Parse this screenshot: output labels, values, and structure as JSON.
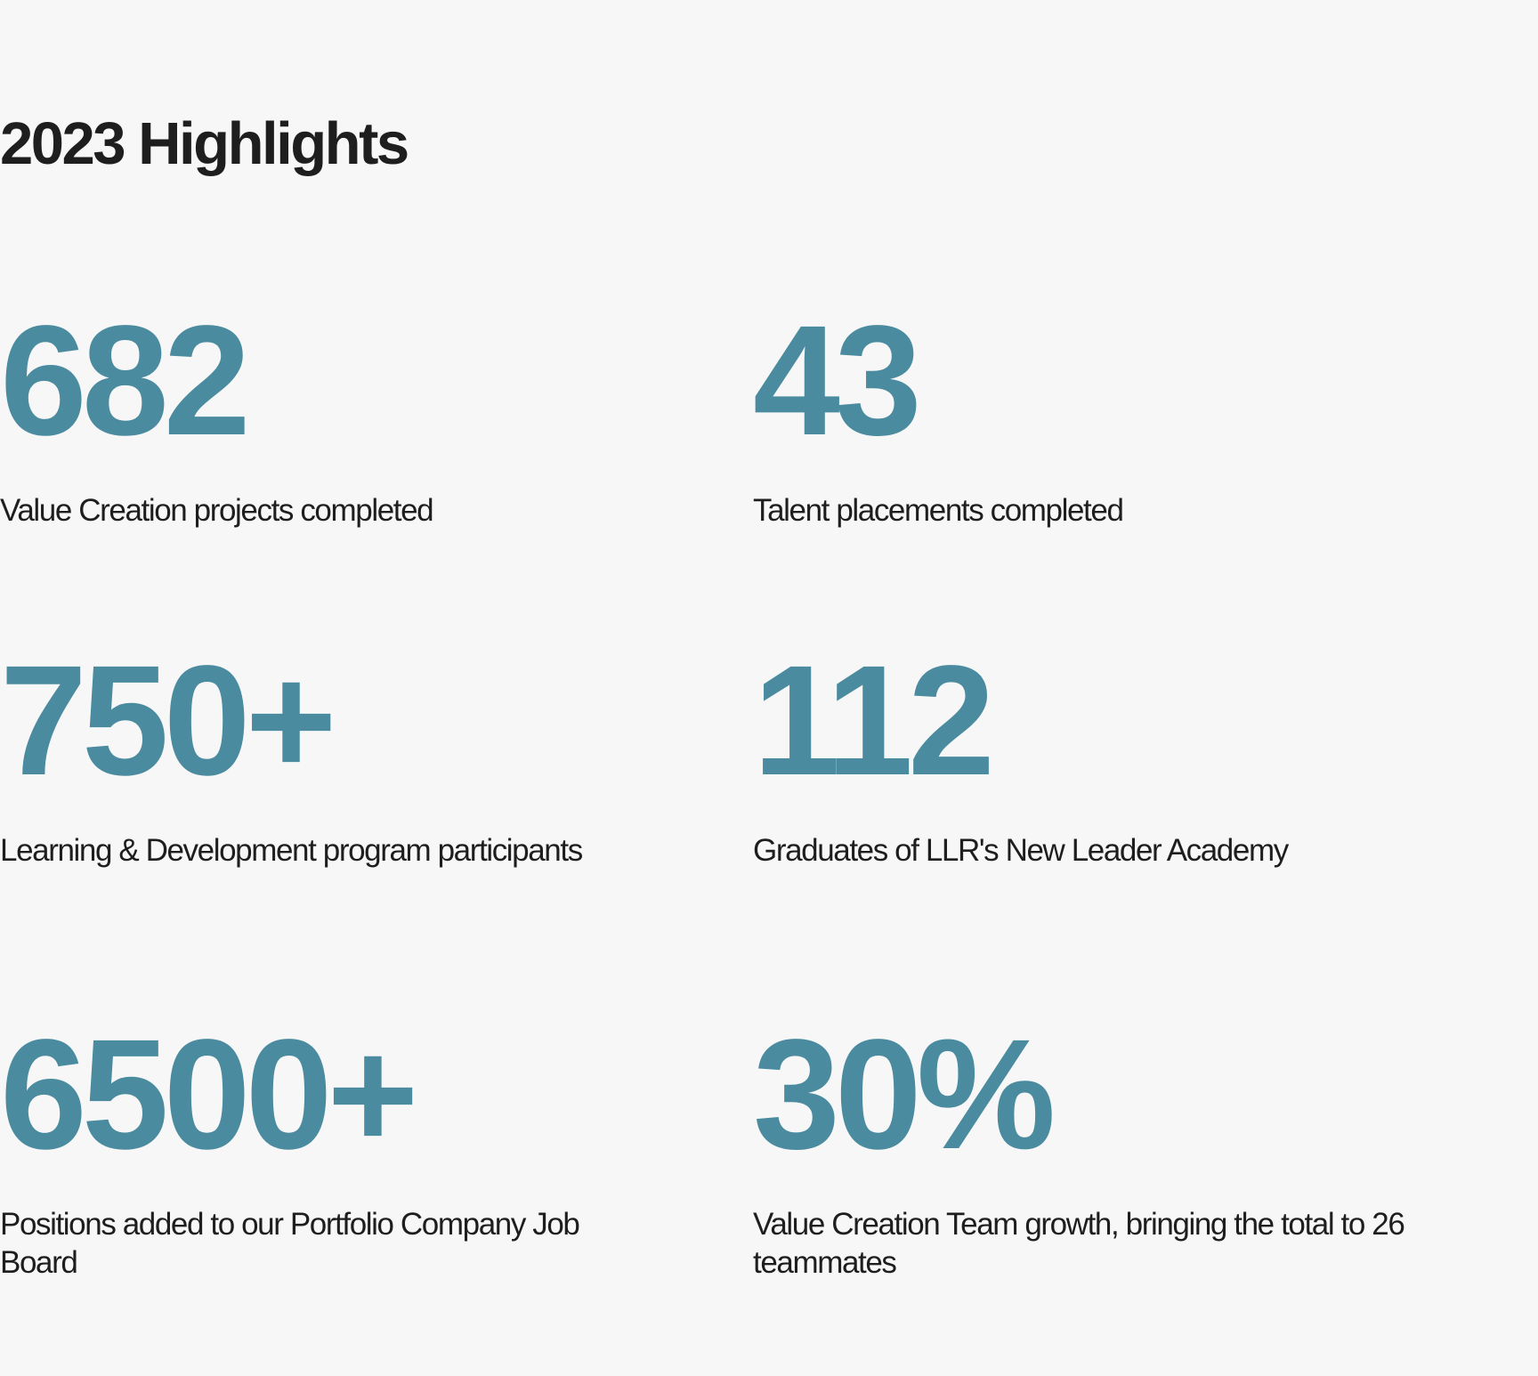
{
  "page": {
    "title": "2023 Highlights",
    "accent_color": "#4a8ba0",
    "text_color": "#1e1e1e",
    "background_color": "#f7f7f7"
  },
  "highlights": [
    {
      "value": "682",
      "label": "Value Creation projects completed"
    },
    {
      "value": "43",
      "label": "Talent placements completed"
    },
    {
      "value": "750+",
      "label": "Learning & Development program participants"
    },
    {
      "value": "112",
      "label": "Graduates of LLR's New Leader Academy"
    },
    {
      "value": "6500+",
      "label": "Positions added to our Portfolio Company Job Board"
    },
    {
      "value": "30%",
      "label": "Value Creation Team growth, bringing the total to 26 teammates"
    }
  ]
}
